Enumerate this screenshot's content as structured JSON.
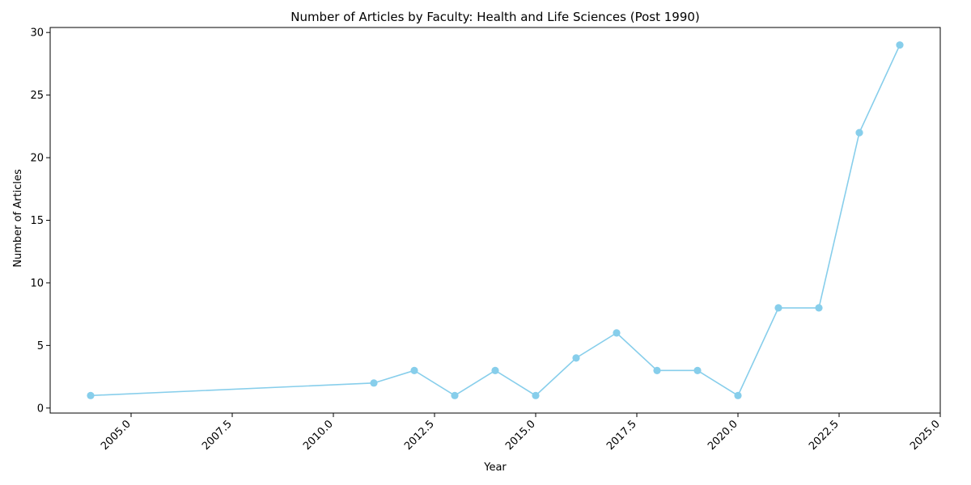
{
  "chart_data": {
    "type": "line",
    "title": "Number of Articles by Faculty: Health and Life Sciences (Post 1990)",
    "xlabel": "Year",
    "ylabel": "Number of Articles",
    "x": [
      2004,
      2011,
      2012,
      2013,
      2014,
      2015,
      2016,
      2017,
      2018,
      2019,
      2020,
      2021,
      2022,
      2023,
      2024
    ],
    "series": [
      {
        "values": [
          1,
          2,
          3,
          1,
          3,
          1,
          4,
          6,
          3,
          3,
          1,
          8,
          8,
          22,
          29
        ]
      }
    ],
    "xlim": [
      2003,
      2025
    ],
    "ylim": [
      -0.4,
      30.4
    ],
    "xticks": [
      2005.0,
      2007.5,
      2010.0,
      2012.5,
      2015.0,
      2017.5,
      2020.0,
      2022.5,
      2025.0
    ],
    "xtick_labels": [
      "2005.0",
      "2007.5",
      "2010.0",
      "2012.5",
      "2015.0",
      "2017.5",
      "2020.0",
      "2022.5",
      "2025.0"
    ],
    "yticks": [
      0,
      5,
      10,
      15,
      20,
      25,
      30
    ],
    "ytick_labels": [
      "0",
      "5",
      "10",
      "15",
      "20",
      "25",
      "30"
    ],
    "grid": false,
    "legend": "none",
    "colors": {
      "line": "#87ceeb",
      "axis": "#000000"
    }
  }
}
